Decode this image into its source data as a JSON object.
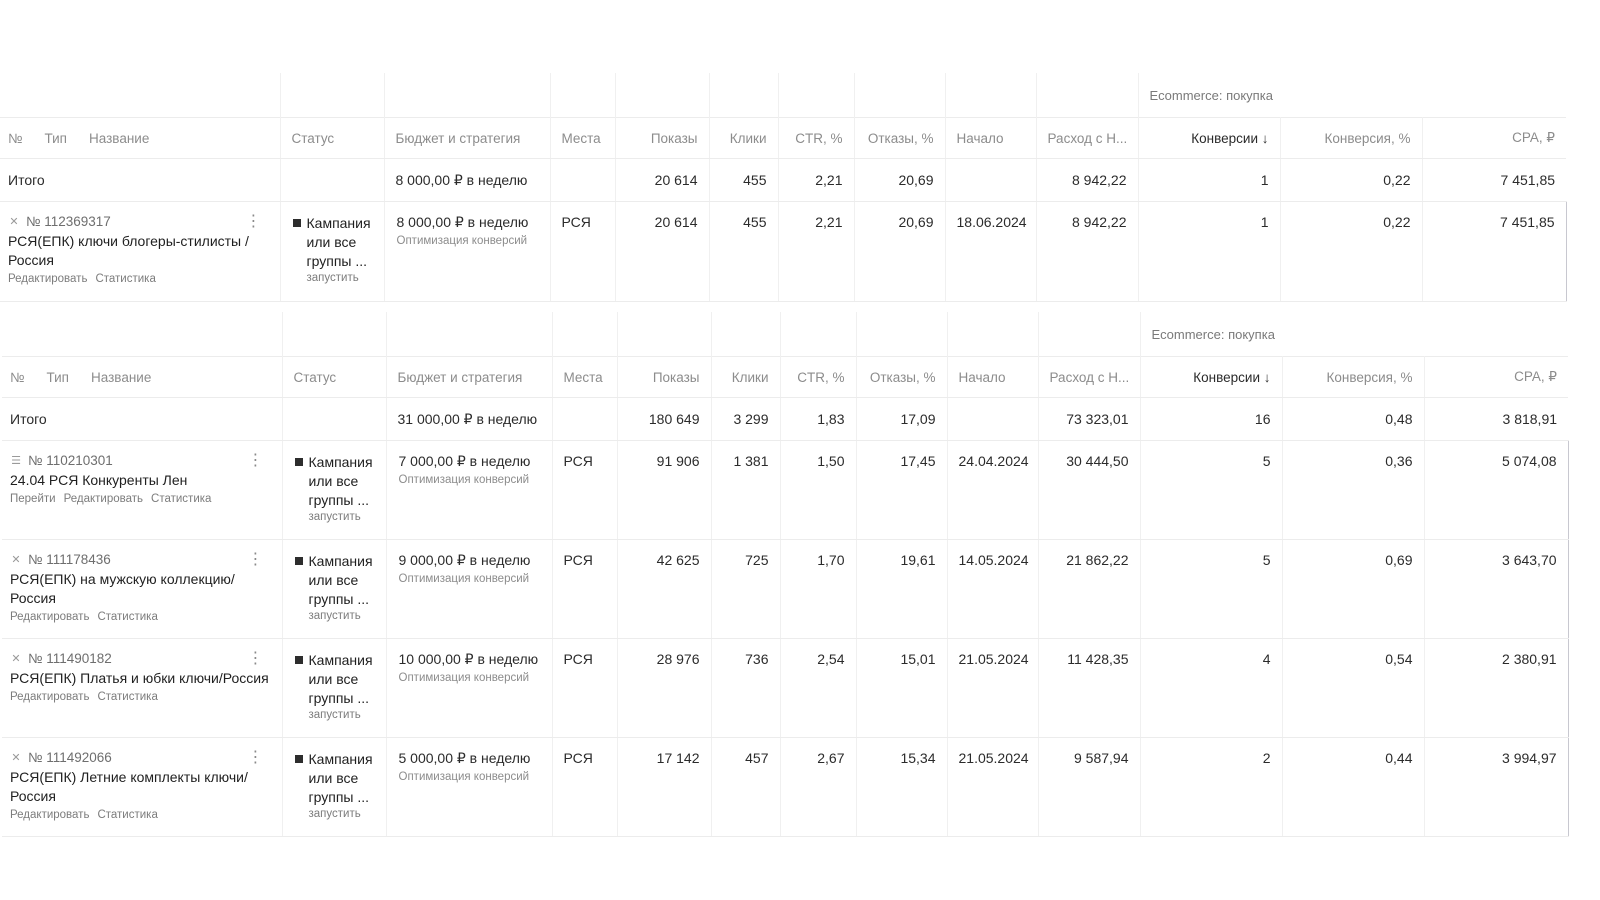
{
  "headers": {
    "no": "№",
    "type": "Тип",
    "name": "Название",
    "status": "Статус",
    "budget": "Бюджет и стратегия",
    "places": "Места",
    "impressions": "Показы",
    "clicks": "Клики",
    "ctr": "CTR, %",
    "bounces": "Отказы, %",
    "start": "Начало",
    "spend": "Расход с Н...",
    "conversions": "Конверсии ↓",
    "conv_rate": "Конверсия, %",
    "cpa": "CPA, ₽",
    "ecommerce_group": "Ecommerce: покупка"
  },
  "tables": [
    {
      "total": {
        "label": "Итого",
        "budget": "8 000,00 ₽ в неделю",
        "impressions": "20 614",
        "clicks": "455",
        "ctr": "2,21",
        "bounces": "20,69",
        "spend": "8 942,22",
        "conversions": "1",
        "conv_rate": "0,22",
        "cpa": "7 451,85"
      },
      "rows": [
        {
          "icon": "close-icon",
          "id": "№ 112369317",
          "name": "РСЯ(ЕПК) ключи блогеры-стилисты / Россия",
          "links": [
            "Редактировать",
            "Статистика"
          ],
          "status": "Кампания или все группы ...",
          "status_action": "запустить",
          "budget": "8 000,00 ₽ в неделю",
          "strategy": "Оптимизация конверсий",
          "places": "РСЯ",
          "impressions": "20 614",
          "clicks": "455",
          "ctr": "2,21",
          "bounces": "20,69",
          "start": "18.06.2024",
          "spend": "8 942,22",
          "conversions": "1",
          "conv_rate": "0,22",
          "cpa": "7 451,85"
        }
      ]
    },
    {
      "total": {
        "label": "Итого",
        "budget": "31 000,00 ₽ в неделю",
        "impressions": "180 649",
        "clicks": "3 299",
        "ctr": "1,83",
        "bounces": "17,09",
        "spend": "73 323,01",
        "conversions": "16",
        "conv_rate": "0,48",
        "cpa": "3 818,91"
      },
      "rows": [
        {
          "icon": "list-icon",
          "id": "№ 110210301",
          "name": "24.04 РСЯ Конкуренты Лен",
          "links": [
            "Перейти",
            "Редактировать",
            "Статистика"
          ],
          "status": "Кампания или все группы ...",
          "status_action": "запустить",
          "budget": "7 000,00 ₽ в неделю",
          "strategy": "Оптимизация конверсий",
          "places": "РСЯ",
          "impressions": "91 906",
          "clicks": "1 381",
          "ctr": "1,50",
          "bounces": "17,45",
          "start": "24.04.2024",
          "spend": "30 444,50",
          "conversions": "5",
          "conv_rate": "0,36",
          "cpa": "5 074,08"
        },
        {
          "icon": "close-icon",
          "id": "№ 111178436",
          "name": "РСЯ(ЕПК) на мужскую коллекцию/Россия",
          "links": [
            "Редактировать",
            "Статистика"
          ],
          "status": "Кампания или все группы ...",
          "status_action": "запустить",
          "budget": "9 000,00 ₽ в неделю",
          "strategy": "Оптимизация конверсий",
          "places": "РСЯ",
          "impressions": "42 625",
          "clicks": "725",
          "ctr": "1,70",
          "bounces": "19,61",
          "start": "14.05.2024",
          "spend": "21 862,22",
          "conversions": "5",
          "conv_rate": "0,69",
          "cpa": "3 643,70"
        },
        {
          "icon": "close-icon",
          "id": "№ 111490182",
          "name": "РСЯ(ЕПК) Платья и юбки ключи/Россия",
          "links": [
            "Редактировать",
            "Статистика"
          ],
          "status": "Кампания или все группы ...",
          "status_action": "запустить",
          "budget": "10 000,00 ₽ в неделю",
          "strategy": "Оптимизация конверсий",
          "places": "РСЯ",
          "impressions": "28 976",
          "clicks": "736",
          "ctr": "2,54",
          "bounces": "15,01",
          "start": "21.05.2024",
          "spend": "11 428,35",
          "conversions": "4",
          "conv_rate": "0,54",
          "cpa": "2 380,91"
        },
        {
          "icon": "close-icon",
          "id": "№ 111492066",
          "name": "РСЯ(ЕПК) Летние комплекты ключи/ Россия",
          "links": [
            "Редактировать",
            "Статистика"
          ],
          "status": "Кампания или все группы ...",
          "status_action": "запустить",
          "budget": "5 000,00 ₽ в неделю",
          "strategy": "Оптимизация конверсий",
          "places": "РСЯ",
          "impressions": "17 142",
          "clicks": "457",
          "ctr": "2,67",
          "bounces": "15,34",
          "start": "21.05.2024",
          "spend": "9 587,94",
          "conversions": "2",
          "conv_rate": "0,44",
          "cpa": "3 994,97"
        }
      ]
    }
  ]
}
